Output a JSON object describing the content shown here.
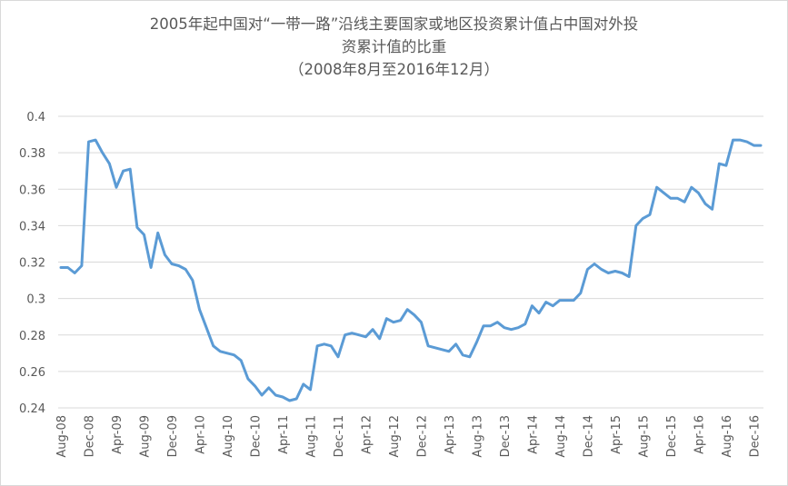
{
  "chart_data": {
    "type": "line",
    "title_lines": [
      "2005年起中国对“一带一路”沿线主要国家或地区投资累计值占中国对外投",
      "资累计值的比重",
      "（2008年8月至2016年12月）"
    ],
    "xlabel": "",
    "ylabel": "",
    "ylim": [
      0.24,
      0.4
    ],
    "y_ticks": [
      "0.24",
      "0.26",
      "0.28",
      "0.3",
      "0.32",
      "0.34",
      "0.36",
      "0.38",
      "0.4"
    ],
    "x_tick_labels": [
      "Aug-08",
      "Dec-08",
      "Apr-09",
      "Aug-09",
      "Dec-09",
      "Apr-10",
      "Aug-10",
      "Dec-10",
      "Apr-11",
      "Aug-11",
      "Dec-11",
      "Apr-12",
      "Aug-12",
      "Dec-12",
      "Apr-13",
      "Aug-13",
      "Dec-13",
      "Apr-14",
      "Aug-14",
      "Dec-14",
      "Apr-15",
      "Aug-15",
      "Dec-15",
      "Apr-16",
      "Aug-16",
      "Dec-16"
    ],
    "grid": true,
    "line_color": "#5b9bd5",
    "series": [
      {
        "values": [
          0.317,
          0.317,
          0.314,
          0.318,
          0.386,
          0.387,
          0.38,
          0.374,
          0.361,
          0.37,
          0.371,
          0.339,
          0.335,
          0.317,
          0.336,
          0.324,
          0.319,
          0.318,
          0.316,
          0.31,
          0.294,
          0.284,
          0.274,
          0.271,
          0.27,
          0.269,
          0.266,
          0.256,
          0.252,
          0.247,
          0.251,
          0.247,
          0.246,
          0.244,
          0.245,
          0.253,
          0.25,
          0.274,
          0.275,
          0.274,
          0.268,
          0.28,
          0.281,
          0.28,
          0.279,
          0.283,
          0.278,
          0.289,
          0.287,
          0.288,
          0.294,
          0.291,
          0.287,
          0.274,
          0.273,
          0.272,
          0.271,
          0.275,
          0.269,
          0.268,
          0.276,
          0.285,
          0.285,
          0.287,
          0.284,
          0.283,
          0.284,
          0.286,
          0.296,
          0.292,
          0.298,
          0.296,
          0.299,
          0.299,
          0.299,
          0.303,
          0.316,
          0.319,
          0.316,
          0.314,
          0.315,
          0.314,
          0.312,
          0.34,
          0.344,
          0.346,
          0.361,
          0.358,
          0.355,
          0.355,
          0.353,
          0.361,
          0.358,
          0.352,
          0.349,
          0.374,
          0.373,
          0.387,
          0.387,
          0.386,
          0.384,
          0.384
        ]
      }
    ]
  }
}
